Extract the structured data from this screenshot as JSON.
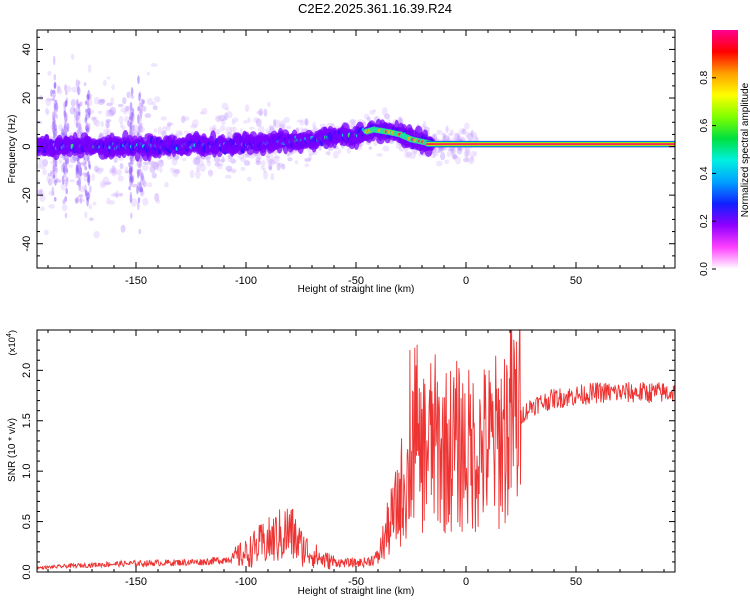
{
  "title": "C2E2.2025.361.16.39.R24",
  "chart_data": [
    {
      "type": "heatmap",
      "xlabel": "Height of straight line (km)",
      "ylabel": "Frequency (Hz)",
      "xlim": [
        -195,
        95
      ],
      "ylim": [
        -50,
        48
      ],
      "xticks": [
        -150,
        -100,
        -50,
        0,
        50
      ],
      "xtick_labels": [
        "-150",
        "-100",
        "-50",
        "0",
        "50"
      ],
      "yticks": [
        -40,
        -20,
        0,
        20,
        40
      ],
      "ytick_labels": [
        "-40",
        "-20",
        "0",
        "20",
        "40"
      ],
      "colorbar": {
        "label": "Normalized spectral amplitude",
        "range": [
          0,
          1
        ],
        "ticks": [
          0,
          0.2,
          0.4,
          0.6,
          0.8
        ],
        "tick_labels": [
          "0.0",
          "0.2",
          "0.4",
          "0.6",
          "0.8"
        ],
        "colors": [
          "#ffffff",
          "#ff40ff",
          "#9000ff",
          "#1020ff",
          "#00a0ff",
          "#00f0e0",
          "#00e040",
          "#80ff00",
          "#ffff00",
          "#ffa000",
          "#ff0000",
          "#ff0090"
        ]
      },
      "ridge": {
        "x": [
          -195,
          -150,
          -100,
          -70,
          -50,
          -42,
          -35,
          -30,
          -25,
          -20,
          -15,
          -10,
          -5,
          0,
          5,
          10,
          15,
          95
        ],
        "freq_hz": [
          0,
          0,
          1,
          3,
          5,
          7,
          6,
          5,
          3,
          2,
          1,
          1,
          0.5,
          0.5,
          0,
          0.5,
          1,
          1
        ]
      }
    },
    {
      "type": "line",
      "xlabel": "Height of straight line (km)",
      "ylabel": "SNR (10 * v/v)",
      "scale_label": "(x10",
      "scale_exponent": "4",
      "xlim": [
        -195,
        95
      ],
      "ylim": [
        0,
        0.24
      ],
      "xticks": [
        -150,
        -100,
        -50,
        0,
        50
      ],
      "xtick_labels": [
        "-150",
        "-100",
        "-50",
        "0",
        "50"
      ],
      "yticks": [
        0,
        0.05,
        0.1,
        0.15,
        0.2
      ],
      "ytick_labels": [
        "0.0",
        "0.5",
        "1.0",
        "1.5",
        "2.0"
      ],
      "line_color": "#ee3333",
      "series": [
        {
          "name": "SNR",
          "x": [
            -195,
            -180,
            -160,
            -140,
            -120,
            -110,
            -100,
            -95,
            -90,
            -85,
            -80,
            -75,
            -70,
            -65,
            -60,
            -55,
            -50,
            -45,
            -40,
            -35,
            -32,
            -30,
            -28,
            -26,
            -24,
            -22,
            -20,
            -15,
            -10,
            -5,
            0,
            5,
            10,
            15,
            20,
            25,
            30,
            40,
            50,
            60,
            70,
            80,
            95
          ],
          "values": [
            0.004,
            0.006,
            0.008,
            0.009,
            0.01,
            0.012,
            0.018,
            0.025,
            0.03,
            0.035,
            0.04,
            0.025,
            0.018,
            0.012,
            0.01,
            0.009,
            0.009,
            0.01,
            0.015,
            0.045,
            0.06,
            0.075,
            0.09,
            0.095,
            0.11,
            0.1,
            0.12,
            0.13,
            0.12,
            0.125,
            0.12,
            0.12,
            0.125,
            0.13,
            0.15,
            0.155,
            0.165,
            0.172,
            0.175,
            0.178,
            0.178,
            0.178,
            0.178
          ]
        }
      ]
    }
  ]
}
